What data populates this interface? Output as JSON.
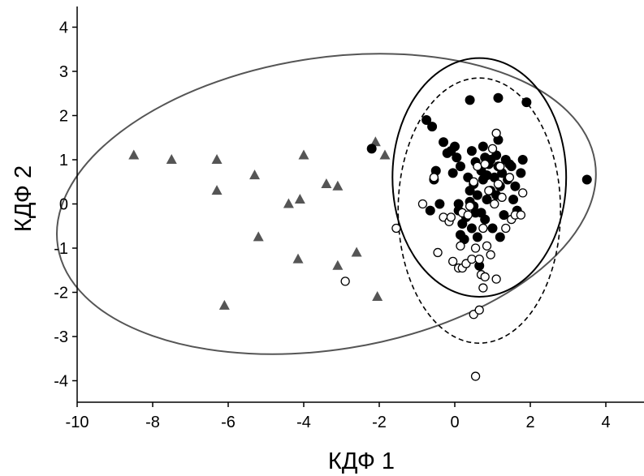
{
  "chart_data": {
    "type": "scatter",
    "xlabel": "КДФ 1",
    "ylabel": "КДФ 2",
    "xlim": [
      -10,
      5
    ],
    "ylim": [
      -4.5,
      4.5
    ],
    "x_ticks": [
      -10,
      -8,
      -6,
      -4,
      -2,
      0,
      2,
      4
    ],
    "x_tick_labels": [
      "-10",
      "-8",
      "-6",
      "-4",
      "-2",
      "0",
      "2",
      "4"
    ],
    "y_ticks": [
      -4,
      -3,
      -2,
      -1,
      0,
      1,
      2,
      3,
      4
    ],
    "y_tick_labels": [
      "-4",
      "-3",
      "-2",
      "-1",
      "0",
      "1",
      "2",
      "3",
      "4"
    ],
    "grid": false,
    "series": [
      {
        "marker": "triangle",
        "color": "#555555",
        "points": [
          [
            -8.5,
            1.1
          ],
          [
            -7.5,
            1.0
          ],
          [
            -6.3,
            1.0
          ],
          [
            -6.3,
            0.3
          ],
          [
            -6.1,
            -2.3
          ],
          [
            -5.3,
            0.65
          ],
          [
            -5.2,
            -0.75
          ],
          [
            -4.4,
            0.0
          ],
          [
            -4.1,
            0.1
          ],
          [
            -4.0,
            1.1
          ],
          [
            -4.15,
            -1.25
          ],
          [
            -3.4,
            0.45
          ],
          [
            -3.1,
            0.4
          ],
          [
            -3.1,
            -1.4
          ],
          [
            -2.6,
            -1.1
          ],
          [
            -2.1,
            1.4
          ],
          [
            -2.05,
            -2.1
          ],
          [
            -1.85,
            1.1
          ]
        ]
      },
      {
        "marker": "filled-circle",
        "color": "#000000",
        "points": [
          [
            -2.2,
            1.25
          ],
          [
            -0.75,
            1.9
          ],
          [
            -0.6,
            1.75
          ],
          [
            -0.65,
            -0.15
          ],
          [
            -0.55,
            0.55
          ],
          [
            -0.5,
            0.75
          ],
          [
            -0.4,
            0.0
          ],
          [
            -0.3,
            1.4
          ],
          [
            -0.2,
            1.15
          ],
          [
            -0.1,
            1.2
          ],
          [
            -0.05,
            0.7
          ],
          [
            0.0,
            1.3
          ],
          [
            0.05,
            1.05
          ],
          [
            0.1,
            0.0
          ],
          [
            0.1,
            -0.15
          ],
          [
            0.15,
            0.85
          ],
          [
            0.15,
            -0.7
          ],
          [
            0.2,
            -0.45
          ],
          [
            0.25,
            -0.8
          ],
          [
            0.3,
            -0.3
          ],
          [
            0.35,
            0.6
          ],
          [
            0.4,
            0.3
          ],
          [
            0.4,
            0.05
          ],
          [
            0.45,
            1.2
          ],
          [
            0.45,
            -0.55
          ],
          [
            0.5,
            0.45
          ],
          [
            0.5,
            -0.05
          ],
          [
            0.55,
            0.95
          ],
          [
            0.55,
            -0.2
          ],
          [
            0.6,
            0.2
          ],
          [
            0.6,
            -0.75
          ],
          [
            0.65,
            -1.4
          ],
          [
            0.7,
            0.75
          ],
          [
            0.7,
            -0.2
          ],
          [
            0.75,
            1.3
          ],
          [
            0.75,
            0.55
          ],
          [
            0.8,
            1.05
          ],
          [
            0.8,
            -0.35
          ],
          [
            0.85,
            0.65
          ],
          [
            0.85,
            0.1
          ],
          [
            0.9,
            0.9
          ],
          [
            0.95,
            1.0
          ],
          [
            0.95,
            0.3
          ],
          [
            1.0,
            -0.55
          ],
          [
            1.05,
            0.6
          ],
          [
            1.1,
            1.1
          ],
          [
            1.1,
            0.2
          ],
          [
            1.15,
            1.45
          ],
          [
            1.15,
            0.85
          ],
          [
            1.2,
            0.4
          ],
          [
            1.2,
            -0.75
          ],
          [
            1.25,
            0.7
          ],
          [
            1.3,
            -0.25
          ],
          [
            1.35,
            1.0
          ],
          [
            1.4,
            0.55
          ],
          [
            1.45,
            0.9
          ],
          [
            1.5,
            0.85
          ],
          [
            1.55,
            0.1
          ],
          [
            1.6,
            0.4
          ],
          [
            1.65,
            -0.15
          ],
          [
            1.75,
            0.7
          ],
          [
            1.8,
            1.0
          ],
          [
            0.4,
            2.35
          ],
          [
            1.15,
            2.4
          ],
          [
            1.9,
            2.3
          ],
          [
            3.5,
            0.55
          ]
        ]
      },
      {
        "marker": "open-circle",
        "color": "#000000",
        "points": [
          [
            -2.9,
            -1.75
          ],
          [
            -1.55,
            -0.55
          ],
          [
            -0.85,
            0.0
          ],
          [
            -0.55,
            0.6
          ],
          [
            -0.45,
            -1.1
          ],
          [
            -0.3,
            -0.3
          ],
          [
            -0.15,
            -0.4
          ],
          [
            -0.1,
            -0.3
          ],
          [
            -0.05,
            -1.3
          ],
          [
            0.1,
            -1.45
          ],
          [
            0.15,
            -0.95
          ],
          [
            0.2,
            -1.45
          ],
          [
            0.2,
            -0.2
          ],
          [
            0.3,
            -1.35
          ],
          [
            0.35,
            -0.25
          ],
          [
            0.4,
            -0.05
          ],
          [
            0.45,
            -1.25
          ],
          [
            0.5,
            0.5
          ],
          [
            0.55,
            -1.0
          ],
          [
            0.6,
            0.85
          ],
          [
            0.65,
            -1.25
          ],
          [
            0.7,
            -1.6
          ],
          [
            0.75,
            -1.9
          ],
          [
            0.8,
            -1.65
          ],
          [
            0.75,
            -0.55
          ],
          [
            0.8,
            0.9
          ],
          [
            0.85,
            -0.95
          ],
          [
            0.9,
            0.3
          ],
          [
            0.95,
            -1.15
          ],
          [
            1.0,
            1.25
          ],
          [
            1.05,
            0.0
          ],
          [
            1.1,
            1.6
          ],
          [
            1.1,
            -1.7
          ],
          [
            1.15,
            0.45
          ],
          [
            1.2,
            0.85
          ],
          [
            1.25,
            0.15
          ],
          [
            1.35,
            -0.55
          ],
          [
            1.45,
            0.6
          ],
          [
            1.5,
            -0.35
          ],
          [
            1.6,
            -0.25
          ],
          [
            1.75,
            -0.25
          ],
          [
            1.8,
            0.25
          ],
          [
            0.5,
            -2.5
          ],
          [
            0.65,
            -2.4
          ],
          [
            0.55,
            -3.9
          ]
        ]
      }
    ],
    "ellipses": [
      {
        "style": "solid",
        "color": "#555555",
        "cx": -3.4,
        "cy": 0.0,
        "rx": 7.2,
        "ry": 3.3,
        "angle_deg": -9
      },
      {
        "style": "solid",
        "color": "#000000",
        "cx": 0.65,
        "cy": 0.6,
        "rx": 2.3,
        "ry": 2.7,
        "angle_deg": 0
      },
      {
        "style": "dashed",
        "color": "#000000",
        "cx": 0.65,
        "cy": -0.15,
        "rx": 2.15,
        "ry": 3.0,
        "angle_deg": 0
      }
    ]
  }
}
